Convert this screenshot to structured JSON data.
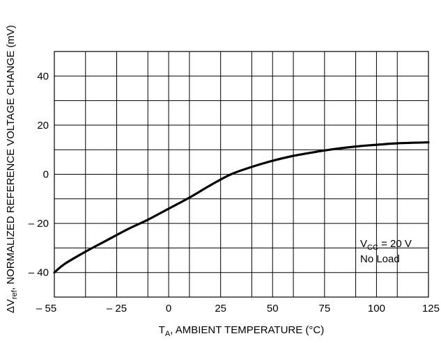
{
  "chart_data": {
    "type": "line",
    "xlabel": {
      "prefix": "T",
      "subscript": "A",
      "suffix": ", AMBIENT TEMPERATURE (°C)"
    },
    "ylabel": {
      "prefix": "ΔV",
      "subscript": "ref",
      "suffix": ", NORMALIZED REFERENCE VOLTAGE CHANGE (mV)"
    },
    "xlim": [
      -55,
      125
    ],
    "ylim": [
      -50,
      50
    ],
    "x_ticks": [
      -55,
      -25,
      0,
      25,
      50,
      75,
      100,
      125
    ],
    "x_tick_labels": [
      "– 55",
      "– 25",
      "0",
      "25",
      "50",
      "75",
      "100",
      "125"
    ],
    "y_ticks": [
      40,
      20,
      0,
      -20,
      -40
    ],
    "y_tick_labels": [
      "40",
      "20",
      "0",
      "– 20",
      "– 40"
    ],
    "x_grid": [
      -55,
      -40,
      -25,
      -10,
      0,
      10,
      25,
      40,
      50,
      60,
      75,
      90,
      100,
      110,
      125
    ],
    "y_grid": [
      50,
      40,
      30,
      20,
      10,
      0,
      -10,
      -20,
      -30,
      -40,
      -50
    ],
    "grid": true,
    "annotation": {
      "line1_prefix": "V",
      "line1_subscript": "CC",
      "line1_suffix": " = 20 V",
      "line2": "No Load",
      "position": "bottom-right"
    },
    "series": [
      {
        "x": [
          -55,
          -50,
          -40,
          -30,
          -20,
          -10,
          0,
          10,
          20,
          30,
          40,
          50,
          60,
          70,
          80,
          90,
          100,
          110,
          125
        ],
        "y": [
          -40,
          -36.5,
          -31.5,
          -27,
          -22.5,
          -18.5,
          -14,
          -9.5,
          -4.5,
          0,
          3,
          5.5,
          7.5,
          9,
          10.3,
          11.3,
          12,
          12.6,
          13
        ]
      }
    ]
  }
}
